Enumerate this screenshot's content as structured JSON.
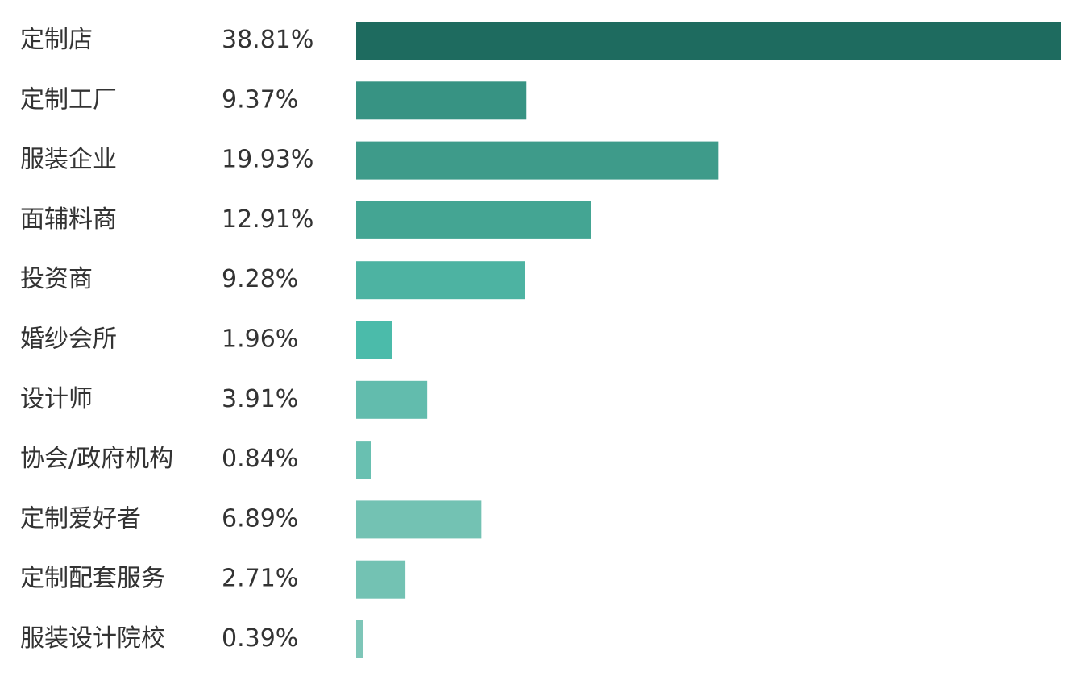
{
  "chart_data": {
    "type": "bar",
    "orientation": "horizontal",
    "categories": [
      "定制店",
      "定制工厂",
      "服装企业",
      "面辅料商",
      "投资商",
      "婚纱会所",
      "设计师",
      "协会/政府机构",
      "定制爱好者",
      "定制配套服务",
      "服装设计院校"
    ],
    "values": [
      38.81,
      9.37,
      19.93,
      12.91,
      9.28,
      1.96,
      3.91,
      0.84,
      6.89,
      2.71,
      0.39
    ],
    "value_labels": [
      "38.81%",
      "9.37%",
      "19.93%",
      "12.91%",
      "9.28%",
      "1.96%",
      "3.91%",
      "0.84%",
      "6.89%",
      "2.71%",
      "0.39%"
    ],
    "colors": [
      "#1e6b5f",
      "#379383",
      "#3e9b8a",
      "#44a593",
      "#4db3a2",
      "#4bbbaa",
      "#62bcad",
      "#69c0b1",
      "#73c2b3",
      "#73c2b3",
      "#7ec6b8"
    ]
  }
}
